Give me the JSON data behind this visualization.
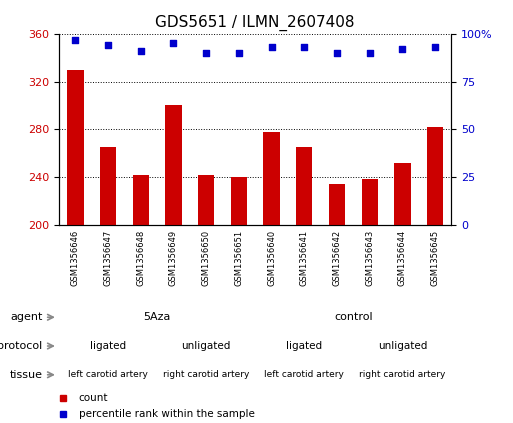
{
  "title": "GDS5651 / ILMN_2607408",
  "samples": [
    "GSM1356646",
    "GSM1356647",
    "GSM1356648",
    "GSM1356649",
    "GSM1356650",
    "GSM1356651",
    "GSM1356640",
    "GSM1356641",
    "GSM1356642",
    "GSM1356643",
    "GSM1356644",
    "GSM1356645"
  ],
  "bar_values": [
    330,
    265,
    242,
    300,
    242,
    240,
    278,
    265,
    234,
    238,
    252,
    282
  ],
  "dot_values": [
    97,
    94,
    91,
    95,
    90,
    90,
    93,
    93,
    90,
    90,
    92,
    93
  ],
  "ylim_left": [
    200,
    360
  ],
  "ylim_right": [
    0,
    100
  ],
  "yticks_left": [
    200,
    240,
    280,
    320,
    360
  ],
  "yticks_right": [
    0,
    25,
    50,
    75,
    100
  ],
  "bar_color": "#cc0000",
  "dot_color": "#0000cc",
  "agent_labels": [
    {
      "label": "5Aza",
      "start": 0,
      "end": 6,
      "color": "#b8eeb8"
    },
    {
      "label": "control",
      "start": 6,
      "end": 12,
      "color": "#66cc66"
    }
  ],
  "protocol_labels": [
    {
      "label": "ligated",
      "start": 0,
      "end": 3,
      "color": "#aaaaee"
    },
    {
      "label": "unligated",
      "start": 3,
      "end": 6,
      "color": "#8888cc"
    },
    {
      "label": "ligated",
      "start": 6,
      "end": 9,
      "color": "#aaaaee"
    },
    {
      "label": "unligated",
      "start": 9,
      "end": 12,
      "color": "#8888cc"
    }
  ],
  "tissue_labels": [
    {
      "label": "left carotid artery",
      "start": 0,
      "end": 3,
      "color": "#ffbbbb"
    },
    {
      "label": "right carotid artery",
      "start": 3,
      "end": 6,
      "color": "#ee8888"
    },
    {
      "label": "left carotid artery",
      "start": 6,
      "end": 9,
      "color": "#ffbbbb"
    },
    {
      "label": "right carotid artery",
      "start": 9,
      "end": 12,
      "color": "#ee8888"
    }
  ],
  "bar_width": 0.5,
  "bg_color": "#ffffff",
  "tick_fontsize": 8,
  "title_fontsize": 11,
  "annot_fontsize": 8,
  "label_fontsize": 8,
  "legend_fontsize": 7.5,
  "sample_fontsize": 6,
  "arrow_color": "#888888",
  "xticklabel_color": "#000000",
  "cell_bg": "#d8d8d8"
}
